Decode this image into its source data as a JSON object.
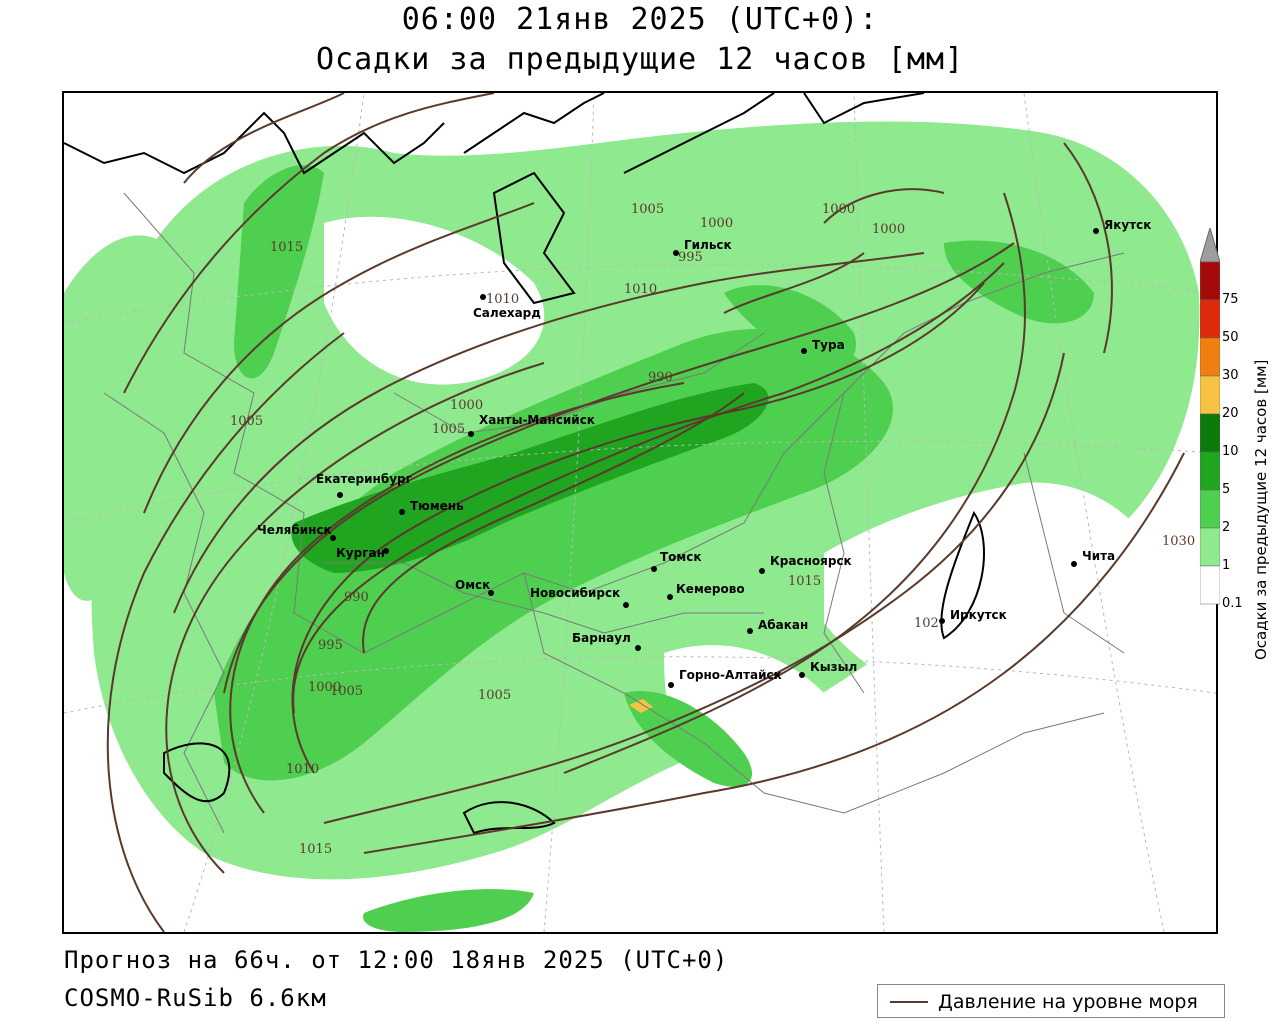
{
  "title": {
    "line1": "06:00 21янв 2025 (UTC+0):",
    "line2": "Осадки за предыдущие 12 часов [мм]"
  },
  "footer": {
    "forecast": "Прогноз на 66ч. от 12:00 18янв 2025 (UTC+0)",
    "model": "COSMO-RuSib 6.6км"
  },
  "legend": {
    "isobar_label": "Давление на уровне моря",
    "isobar_color": "#5a3a2c"
  },
  "colorbar": {
    "title": "Осадки за предыдущие 12 часов [мм]",
    "levels": [
      "0.1",
      "1",
      "2",
      "5",
      "10",
      "20",
      "30",
      "50",
      "75"
    ],
    "colors": [
      "#ffffff",
      "#8fe98f",
      "#4fcf4f",
      "#1fa51f",
      "#0a7a0a",
      "#f5c242",
      "#f07f10",
      "#dd2a0a",
      "#a50a0a",
      "#9e9e9e"
    ]
  },
  "cities": [
    {
      "name": "Якутск"
    },
    {
      "name": "Салехард"
    },
    {
      "name": "Тура"
    },
    {
      "name": "Ханты-Мансийск"
    },
    {
      "name": "Екатеринбург"
    },
    {
      "name": "Тюмень"
    },
    {
      "name": "Челябинск"
    },
    {
      "name": "Курган"
    },
    {
      "name": "Омск"
    },
    {
      "name": "Томск"
    },
    {
      "name": "Красноярск"
    },
    {
      "name": "Новосибирск"
    },
    {
      "name": "Кемерово"
    },
    {
      "name": "Абакан"
    },
    {
      "name": "Барнаул"
    },
    {
      "name": "Горно-Алтайск"
    },
    {
      "name": "Кызыл"
    },
    {
      "name": "Чита"
    },
    {
      "name": "Иркутск"
    },
    {
      "name": "Гильск"
    }
  ],
  "isobar_labels": [
    {
      "value": "1015"
    },
    {
      "value": "1010"
    },
    {
      "value": "1005"
    },
    {
      "value": "1000"
    },
    {
      "value": "995"
    },
    {
      "value": "990"
    },
    {
      "value": "1000"
    },
    {
      "value": "1005"
    },
    {
      "value": "1010"
    },
    {
      "value": "1015"
    },
    {
      "value": "1010"
    },
    {
      "value": "1005"
    },
    {
      "value": "1000"
    },
    {
      "value": "995"
    },
    {
      "value": "990"
    },
    {
      "value": "1000"
    },
    {
      "value": "1000"
    },
    {
      "value": "1015"
    },
    {
      "value": "1030"
    },
    {
      "value": "102"
    },
    {
      "value": "1005"
    },
    {
      "value": "1005"
    }
  ]
}
